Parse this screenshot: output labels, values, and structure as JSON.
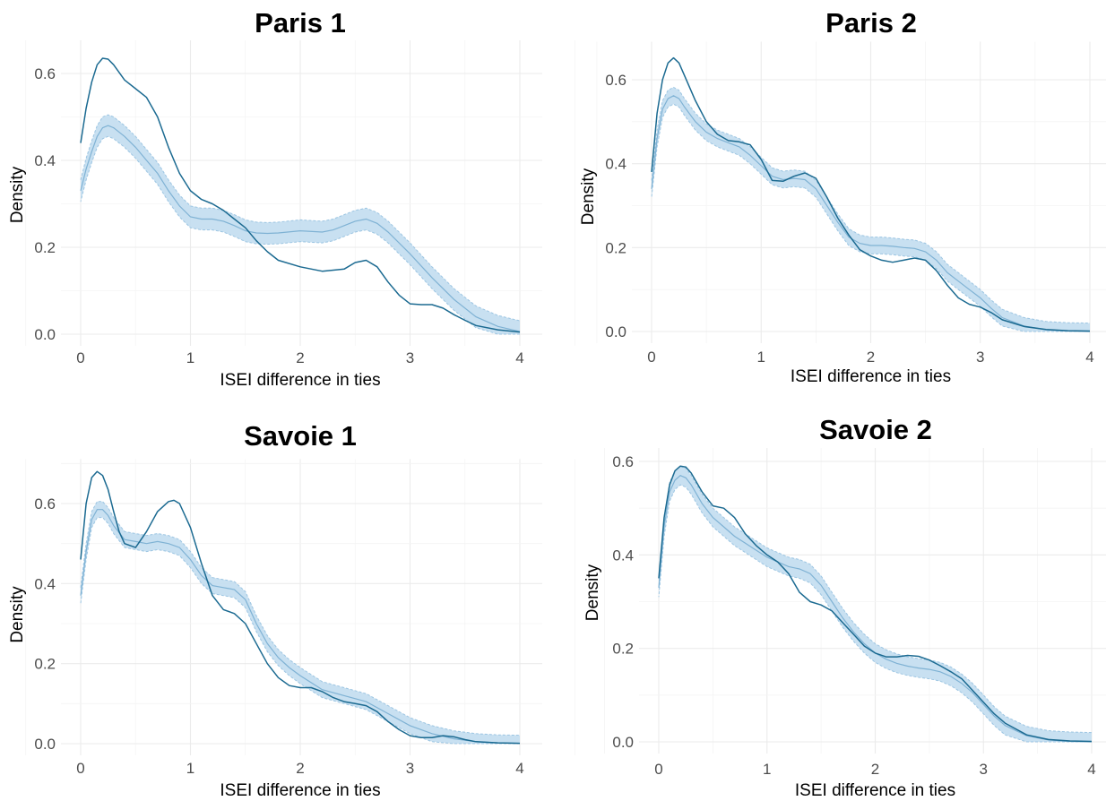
{
  "chart_data": [
    {
      "type": "area",
      "title": "Paris 1",
      "xlabel": "ISEI difference in ties",
      "ylabel": "Density",
      "xlim": [
        0,
        4
      ],
      "ylim": [
        0,
        0.66
      ],
      "xticks": [
        0,
        1,
        2,
        3,
        4
      ],
      "yticks": [
        0.0,
        0.2,
        0.4,
        0.6
      ],
      "grid": true,
      "legend": "none",
      "series": [
        {
          "kind": "observed",
          "x": [
            0,
            0.05,
            0.1,
            0.15,
            0.2,
            0.25,
            0.3,
            0.4,
            0.5,
            0.6,
            0.7,
            0.8,
            0.9,
            1.0,
            1.1,
            1.2,
            1.3,
            1.4,
            1.5,
            1.6,
            1.7,
            1.8,
            2.0,
            2.2,
            2.4,
            2.5,
            2.6,
            2.7,
            2.8,
            2.9,
            3.0,
            3.1,
            3.2,
            3.3,
            3.4,
            3.5,
            3.6,
            3.8,
            4.0
          ],
          "y": [
            0.44,
            0.52,
            0.58,
            0.62,
            0.635,
            0.633,
            0.62,
            0.585,
            0.565,
            0.545,
            0.5,
            0.43,
            0.37,
            0.33,
            0.31,
            0.3,
            0.285,
            0.265,
            0.245,
            0.215,
            0.19,
            0.17,
            0.155,
            0.145,
            0.15,
            0.165,
            0.17,
            0.155,
            0.12,
            0.09,
            0.07,
            0.068,
            0.068,
            0.06,
            0.045,
            0.032,
            0.02,
            0.01,
            0.005
          ]
        },
        {
          "kind": "simulated-mean",
          "x": [
            0,
            0.05,
            0.1,
            0.15,
            0.2,
            0.25,
            0.3,
            0.4,
            0.5,
            0.6,
            0.7,
            0.8,
            0.9,
            1.0,
            1.1,
            1.2,
            1.3,
            1.4,
            1.5,
            1.6,
            1.7,
            1.8,
            2.0,
            2.2,
            2.3,
            2.4,
            2.5,
            2.6,
            2.7,
            2.8,
            3.0,
            3.2,
            3.4,
            3.6,
            3.8,
            4.0
          ],
          "y": [
            0.33,
            0.38,
            0.42,
            0.455,
            0.475,
            0.48,
            0.475,
            0.455,
            0.43,
            0.4,
            0.37,
            0.33,
            0.295,
            0.27,
            0.265,
            0.265,
            0.26,
            0.25,
            0.238,
            0.233,
            0.232,
            0.233,
            0.238,
            0.235,
            0.24,
            0.25,
            0.26,
            0.265,
            0.255,
            0.235,
            0.185,
            0.13,
            0.08,
            0.04,
            0.018,
            0.006
          ],
          "band": 0.025
        }
      ]
    },
    {
      "type": "area",
      "title": "Paris 2",
      "xlabel": "ISEI difference in ties",
      "ylabel": "Density",
      "xlim": [
        0,
        4
      ],
      "ylim": [
        0,
        0.68
      ],
      "xticks": [
        0,
        1,
        2,
        3,
        4
      ],
      "yticks": [
        0.0,
        0.2,
        0.4,
        0.6
      ],
      "grid": true,
      "legend": "none",
      "series": [
        {
          "kind": "observed",
          "x": [
            0,
            0.05,
            0.1,
            0.15,
            0.2,
            0.25,
            0.3,
            0.4,
            0.5,
            0.6,
            0.7,
            0.8,
            0.9,
            1.0,
            1.1,
            1.2,
            1.3,
            1.4,
            1.5,
            1.6,
            1.7,
            1.8,
            1.9,
            2.0,
            2.1,
            2.2,
            2.3,
            2.4,
            2.5,
            2.6,
            2.7,
            2.8,
            2.9,
            3.0,
            3.1,
            3.2,
            3.4,
            3.6,
            3.8,
            4.0
          ],
          "y": [
            0.38,
            0.52,
            0.6,
            0.64,
            0.652,
            0.64,
            0.61,
            0.55,
            0.5,
            0.47,
            0.455,
            0.452,
            0.445,
            0.41,
            0.36,
            0.358,
            0.37,
            0.378,
            0.365,
            0.32,
            0.27,
            0.23,
            0.195,
            0.18,
            0.17,
            0.165,
            0.17,
            0.175,
            0.17,
            0.145,
            0.11,
            0.08,
            0.065,
            0.058,
            0.045,
            0.028,
            0.012,
            0.005,
            0.002,
            0.001
          ]
        },
        {
          "kind": "simulated-mean",
          "x": [
            0,
            0.05,
            0.1,
            0.15,
            0.2,
            0.25,
            0.3,
            0.4,
            0.5,
            0.6,
            0.7,
            0.8,
            0.9,
            1.0,
            1.1,
            1.2,
            1.3,
            1.4,
            1.5,
            1.6,
            1.7,
            1.8,
            1.9,
            2.0,
            2.1,
            2.2,
            2.3,
            2.4,
            2.5,
            2.6,
            2.7,
            2.8,
            2.9,
            3.0,
            3.1,
            3.2,
            3.4,
            3.6,
            3.8,
            4.0
          ],
          "y": [
            0.34,
            0.46,
            0.53,
            0.555,
            0.562,
            0.555,
            0.535,
            0.5,
            0.475,
            0.46,
            0.45,
            0.44,
            0.42,
            0.395,
            0.37,
            0.362,
            0.365,
            0.362,
            0.34,
            0.3,
            0.26,
            0.225,
            0.21,
            0.205,
            0.205,
            0.203,
            0.2,
            0.198,
            0.19,
            0.17,
            0.14,
            0.12,
            0.1,
            0.08,
            0.055,
            0.033,
            0.013,
            0.004,
            0.001,
            0.0
          ],
          "band": 0.02
        }
      ]
    },
    {
      "type": "area",
      "title": "Savoie 1",
      "xlabel": "ISEI difference in ties",
      "ylabel": "Density",
      "xlim": [
        0,
        4
      ],
      "ylim": [
        0,
        0.7
      ],
      "xticks": [
        0,
        1,
        2,
        3,
        4
      ],
      "yticks": [
        0.0,
        0.2,
        0.4,
        0.6
      ],
      "grid": true,
      "legend": "none",
      "series": [
        {
          "kind": "observed",
          "x": [
            0,
            0.05,
            0.1,
            0.15,
            0.2,
            0.25,
            0.3,
            0.35,
            0.4,
            0.5,
            0.6,
            0.7,
            0.8,
            0.85,
            0.9,
            1.0,
            1.1,
            1.2,
            1.3,
            1.4,
            1.5,
            1.6,
            1.7,
            1.8,
            1.9,
            2.0,
            2.1,
            2.2,
            2.3,
            2.4,
            2.5,
            2.6,
            2.7,
            2.8,
            2.9,
            3.0,
            3.1,
            3.2,
            3.3,
            3.4,
            3.5,
            3.6,
            3.8,
            4.0
          ],
          "y": [
            0.46,
            0.6,
            0.665,
            0.68,
            0.67,
            0.635,
            0.58,
            0.53,
            0.5,
            0.49,
            0.53,
            0.58,
            0.605,
            0.608,
            0.6,
            0.54,
            0.45,
            0.37,
            0.335,
            0.325,
            0.3,
            0.25,
            0.2,
            0.165,
            0.145,
            0.14,
            0.14,
            0.13,
            0.115,
            0.105,
            0.1,
            0.095,
            0.08,
            0.055,
            0.035,
            0.02,
            0.015,
            0.015,
            0.02,
            0.017,
            0.01,
            0.005,
            0.002,
            0.001
          ]
        },
        {
          "kind": "simulated-mean",
          "x": [
            0,
            0.05,
            0.1,
            0.15,
            0.2,
            0.25,
            0.3,
            0.4,
            0.5,
            0.6,
            0.7,
            0.8,
            0.9,
            1.0,
            1.1,
            1.2,
            1.3,
            1.4,
            1.5,
            1.6,
            1.7,
            1.8,
            1.9,
            2.0,
            2.2,
            2.4,
            2.6,
            2.8,
            3.0,
            3.2,
            3.4,
            3.6,
            3.8,
            4.0
          ],
          "y": [
            0.37,
            0.48,
            0.56,
            0.585,
            0.585,
            0.57,
            0.545,
            0.51,
            0.505,
            0.5,
            0.505,
            0.5,
            0.49,
            0.46,
            0.42,
            0.395,
            0.39,
            0.385,
            0.36,
            0.3,
            0.25,
            0.215,
            0.19,
            0.17,
            0.135,
            0.12,
            0.105,
            0.075,
            0.045,
            0.025,
            0.012,
            0.005,
            0.002,
            0.001
          ],
          "band": 0.02
        }
      ]
    },
    {
      "type": "area",
      "title": "Savoie 2",
      "xlabel": "ISEI difference in ties",
      "ylabel": "Density",
      "xlim": [
        0,
        4
      ],
      "ylim": [
        0,
        0.605
      ],
      "xticks": [
        0,
        1,
        2,
        3,
        4
      ],
      "yticks": [
        0.0,
        0.2,
        0.4,
        0.6
      ],
      "grid": true,
      "legend": "none",
      "series": [
        {
          "kind": "observed",
          "x": [
            0,
            0.05,
            0.1,
            0.15,
            0.2,
            0.25,
            0.3,
            0.4,
            0.5,
            0.6,
            0.7,
            0.8,
            0.9,
            1.0,
            1.1,
            1.2,
            1.3,
            1.4,
            1.5,
            1.6,
            1.7,
            1.8,
            1.9,
            2.0,
            2.1,
            2.2,
            2.3,
            2.4,
            2.5,
            2.6,
            2.7,
            2.8,
            2.9,
            3.0,
            3.1,
            3.2,
            3.4,
            3.6,
            3.8,
            4.0
          ],
          "y": [
            0.35,
            0.48,
            0.55,
            0.58,
            0.59,
            0.588,
            0.575,
            0.535,
            0.505,
            0.5,
            0.48,
            0.445,
            0.42,
            0.4,
            0.385,
            0.36,
            0.32,
            0.3,
            0.293,
            0.28,
            0.255,
            0.23,
            0.205,
            0.19,
            0.182,
            0.182,
            0.185,
            0.183,
            0.175,
            0.163,
            0.15,
            0.135,
            0.11,
            0.085,
            0.06,
            0.04,
            0.015,
            0.005,
            0.002,
            0.001
          ]
        },
        {
          "kind": "simulated-mean",
          "x": [
            0,
            0.05,
            0.1,
            0.15,
            0.2,
            0.25,
            0.3,
            0.4,
            0.5,
            0.6,
            0.7,
            0.8,
            0.9,
            1.0,
            1.1,
            1.2,
            1.3,
            1.4,
            1.5,
            1.6,
            1.7,
            1.8,
            1.9,
            2.0,
            2.1,
            2.2,
            2.3,
            2.4,
            2.5,
            2.6,
            2.7,
            2.8,
            2.9,
            3.0,
            3.1,
            3.2,
            3.4,
            3.6,
            3.8,
            4.0
          ],
          "y": [
            0.33,
            0.46,
            0.535,
            0.56,
            0.57,
            0.565,
            0.55,
            0.51,
            0.48,
            0.46,
            0.44,
            0.425,
            0.41,
            0.395,
            0.385,
            0.375,
            0.37,
            0.36,
            0.335,
            0.3,
            0.265,
            0.235,
            0.21,
            0.19,
            0.177,
            0.168,
            0.162,
            0.158,
            0.155,
            0.15,
            0.14,
            0.125,
            0.105,
            0.08,
            0.055,
            0.035,
            0.013,
            0.004,
            0.001,
            0.0
          ],
          "band": 0.02
        }
      ]
    }
  ],
  "colors": {
    "observed_line": "#1b6a91",
    "simulated_line": "#7fb2d4",
    "simulated_band": "#c2ddef",
    "simulated_band_edge": "#9cc5e2"
  }
}
